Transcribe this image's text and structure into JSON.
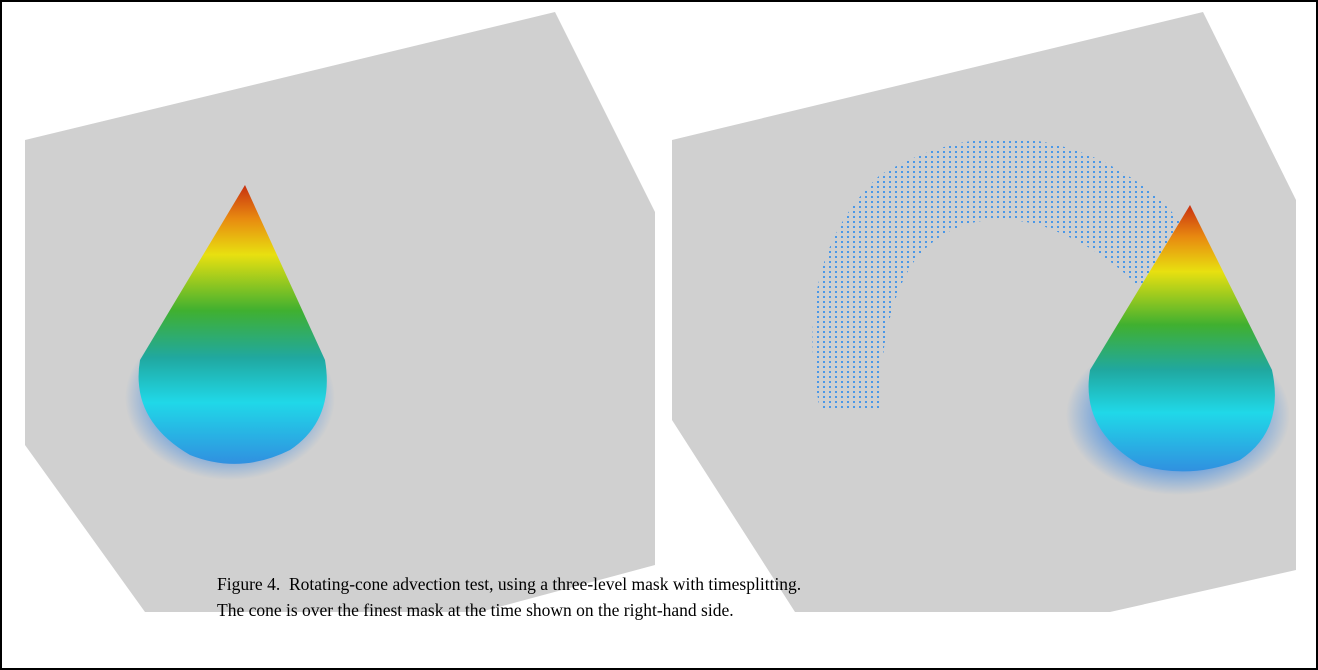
{
  "figure": {
    "caption": [
      "Figure 4.  Rotating-cone advection test, using a three-level mask with timesplitting.",
      "The cone is over the finest mask at the time shown on the right-hand side."
    ]
  }
}
